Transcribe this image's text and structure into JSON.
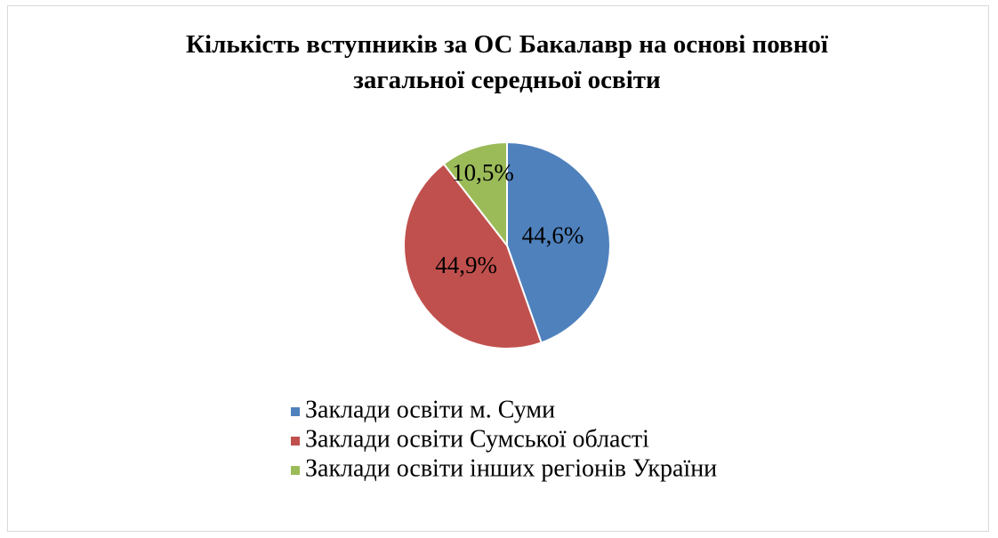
{
  "chart_data": {
    "type": "pie",
    "title": "Кількість вступників за ОС Бакалавр на основі повної загальної середньої освіти",
    "categories": [
      "Заклади освіти м. Суми",
      "Заклади освіти Сумської області",
      "Заклади освіти інших регіонів України"
    ],
    "values": [
      44.6,
      44.9,
      10.5
    ],
    "value_labels": [
      "44,6%",
      "44,9%",
      "10,5%"
    ],
    "colors": [
      "#4f81bd",
      "#c0504d",
      "#9bbb59"
    ],
    "legend": "bottom"
  }
}
